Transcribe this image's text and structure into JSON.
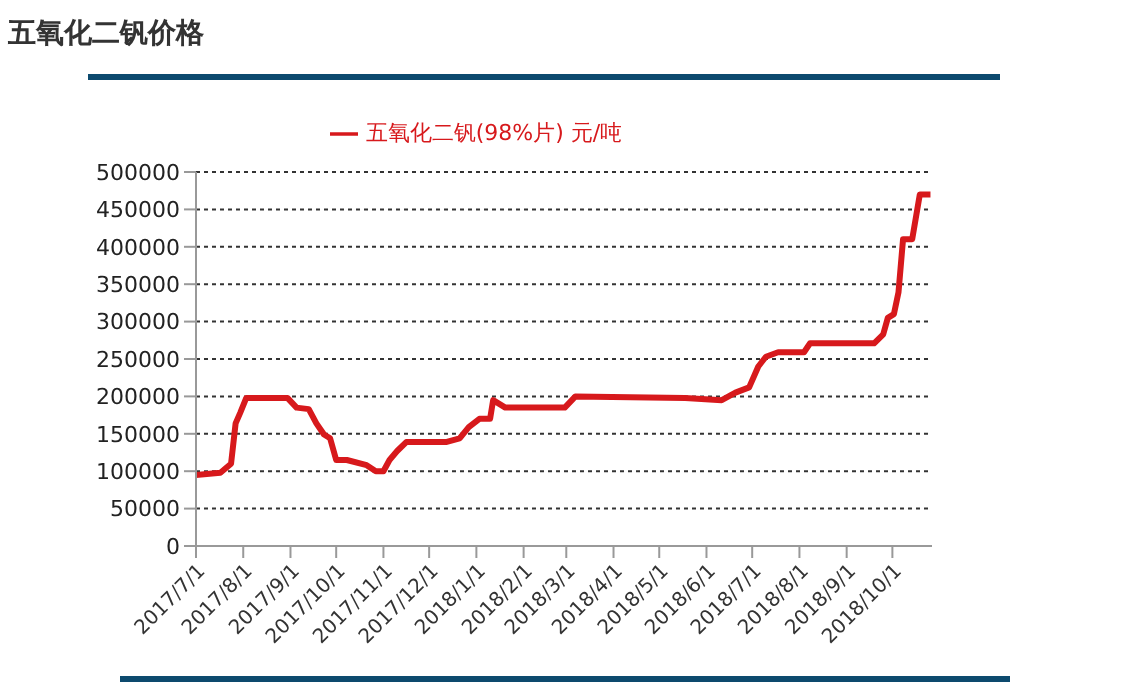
{
  "chart_data": {
    "type": "line",
    "title": "五氧化二钒价格",
    "legend": "top",
    "grid": "y",
    "xlim": [
      "2017-07-01",
      "2018-10-27"
    ],
    "xticks": [
      {
        "value": "2017-07-01",
        "label": "2017/7/1"
      },
      {
        "value": "2017-08-01",
        "label": "2017/8/1"
      },
      {
        "value": "2017-09-01",
        "label": "2017/9/1"
      },
      {
        "value": "2017-10-01",
        "label": "2017/10/1"
      },
      {
        "value": "2017-11-01",
        "label": "2017/11/1"
      },
      {
        "value": "2017-12-01",
        "label": "2017/12/1"
      },
      {
        "value": "2018-01-01",
        "label": "2018/1/1"
      },
      {
        "value": "2018-02-01",
        "label": "2018/2/1"
      },
      {
        "value": "2018-03-01",
        "label": "2018/3/1"
      },
      {
        "value": "2018-04-01",
        "label": "2018/4/1"
      },
      {
        "value": "2018-05-01",
        "label": "2018/5/1"
      },
      {
        "value": "2018-06-01",
        "label": "2018/6/1"
      },
      {
        "value": "2018-07-01",
        "label": "2018/7/1"
      },
      {
        "value": "2018-08-01",
        "label": "2018/8/1"
      },
      {
        "value": "2018-09-01",
        "label": "2018/9/1"
      },
      {
        "value": "2018-10-01",
        "label": "2018/10/1"
      }
    ],
    "ylim": [
      0,
      500000
    ],
    "yticks": [
      0,
      50000,
      100000,
      150000,
      200000,
      250000,
      300000,
      350000,
      400000,
      450000,
      500000
    ],
    "x": [
      "2017-07-01",
      "2017-07-17",
      "2017-07-24",
      "2017-07-27",
      "2017-07-30",
      "2017-08-03",
      "2017-08-30",
      "2017-09-05",
      "2017-09-13",
      "2017-09-18",
      "2017-09-23",
      "2017-09-27",
      "2017-10-01",
      "2017-10-08",
      "2017-10-21",
      "2017-10-27",
      "2017-11-01",
      "2017-11-05",
      "2017-11-10",
      "2017-11-16",
      "2017-12-12",
      "2017-12-21",
      "2017-12-27",
      "2018-01-03",
      "2018-01-10",
      "2018-01-12",
      "2018-01-20",
      "2018-02-28",
      "2018-03-07",
      "2018-05-18",
      "2018-06-11",
      "2018-06-20",
      "2018-06-29",
      "2018-07-05",
      "2018-07-10",
      "2018-07-18",
      "2018-08-04",
      "2018-08-08",
      "2018-09-19",
      "2018-09-25",
      "2018-09-28",
      "2018-10-02",
      "2018-10-05",
      "2018-10-08",
      "2018-10-14",
      "2018-10-19",
      "2018-10-26"
    ],
    "series": [
      {
        "name": "五氧化二钒(98%片) 元/吨",
        "color": "#d7191c",
        "values": [
          95000,
          98000,
          110000,
          164000,
          178000,
          198000,
          198000,
          185000,
          183000,
          164000,
          149000,
          144000,
          115000,
          115000,
          108000,
          100000,
          100000,
          115000,
          127000,
          139000,
          139000,
          144000,
          159000,
          170000,
          170000,
          195000,
          185000,
          185000,
          200000,
          198000,
          195000,
          205000,
          212000,
          240000,
          253000,
          259000,
          259000,
          271000,
          271000,
          283000,
          305000,
          310000,
          339000,
          410000,
          410000,
          470000,
          470000
        ]
      }
    ]
  }
}
